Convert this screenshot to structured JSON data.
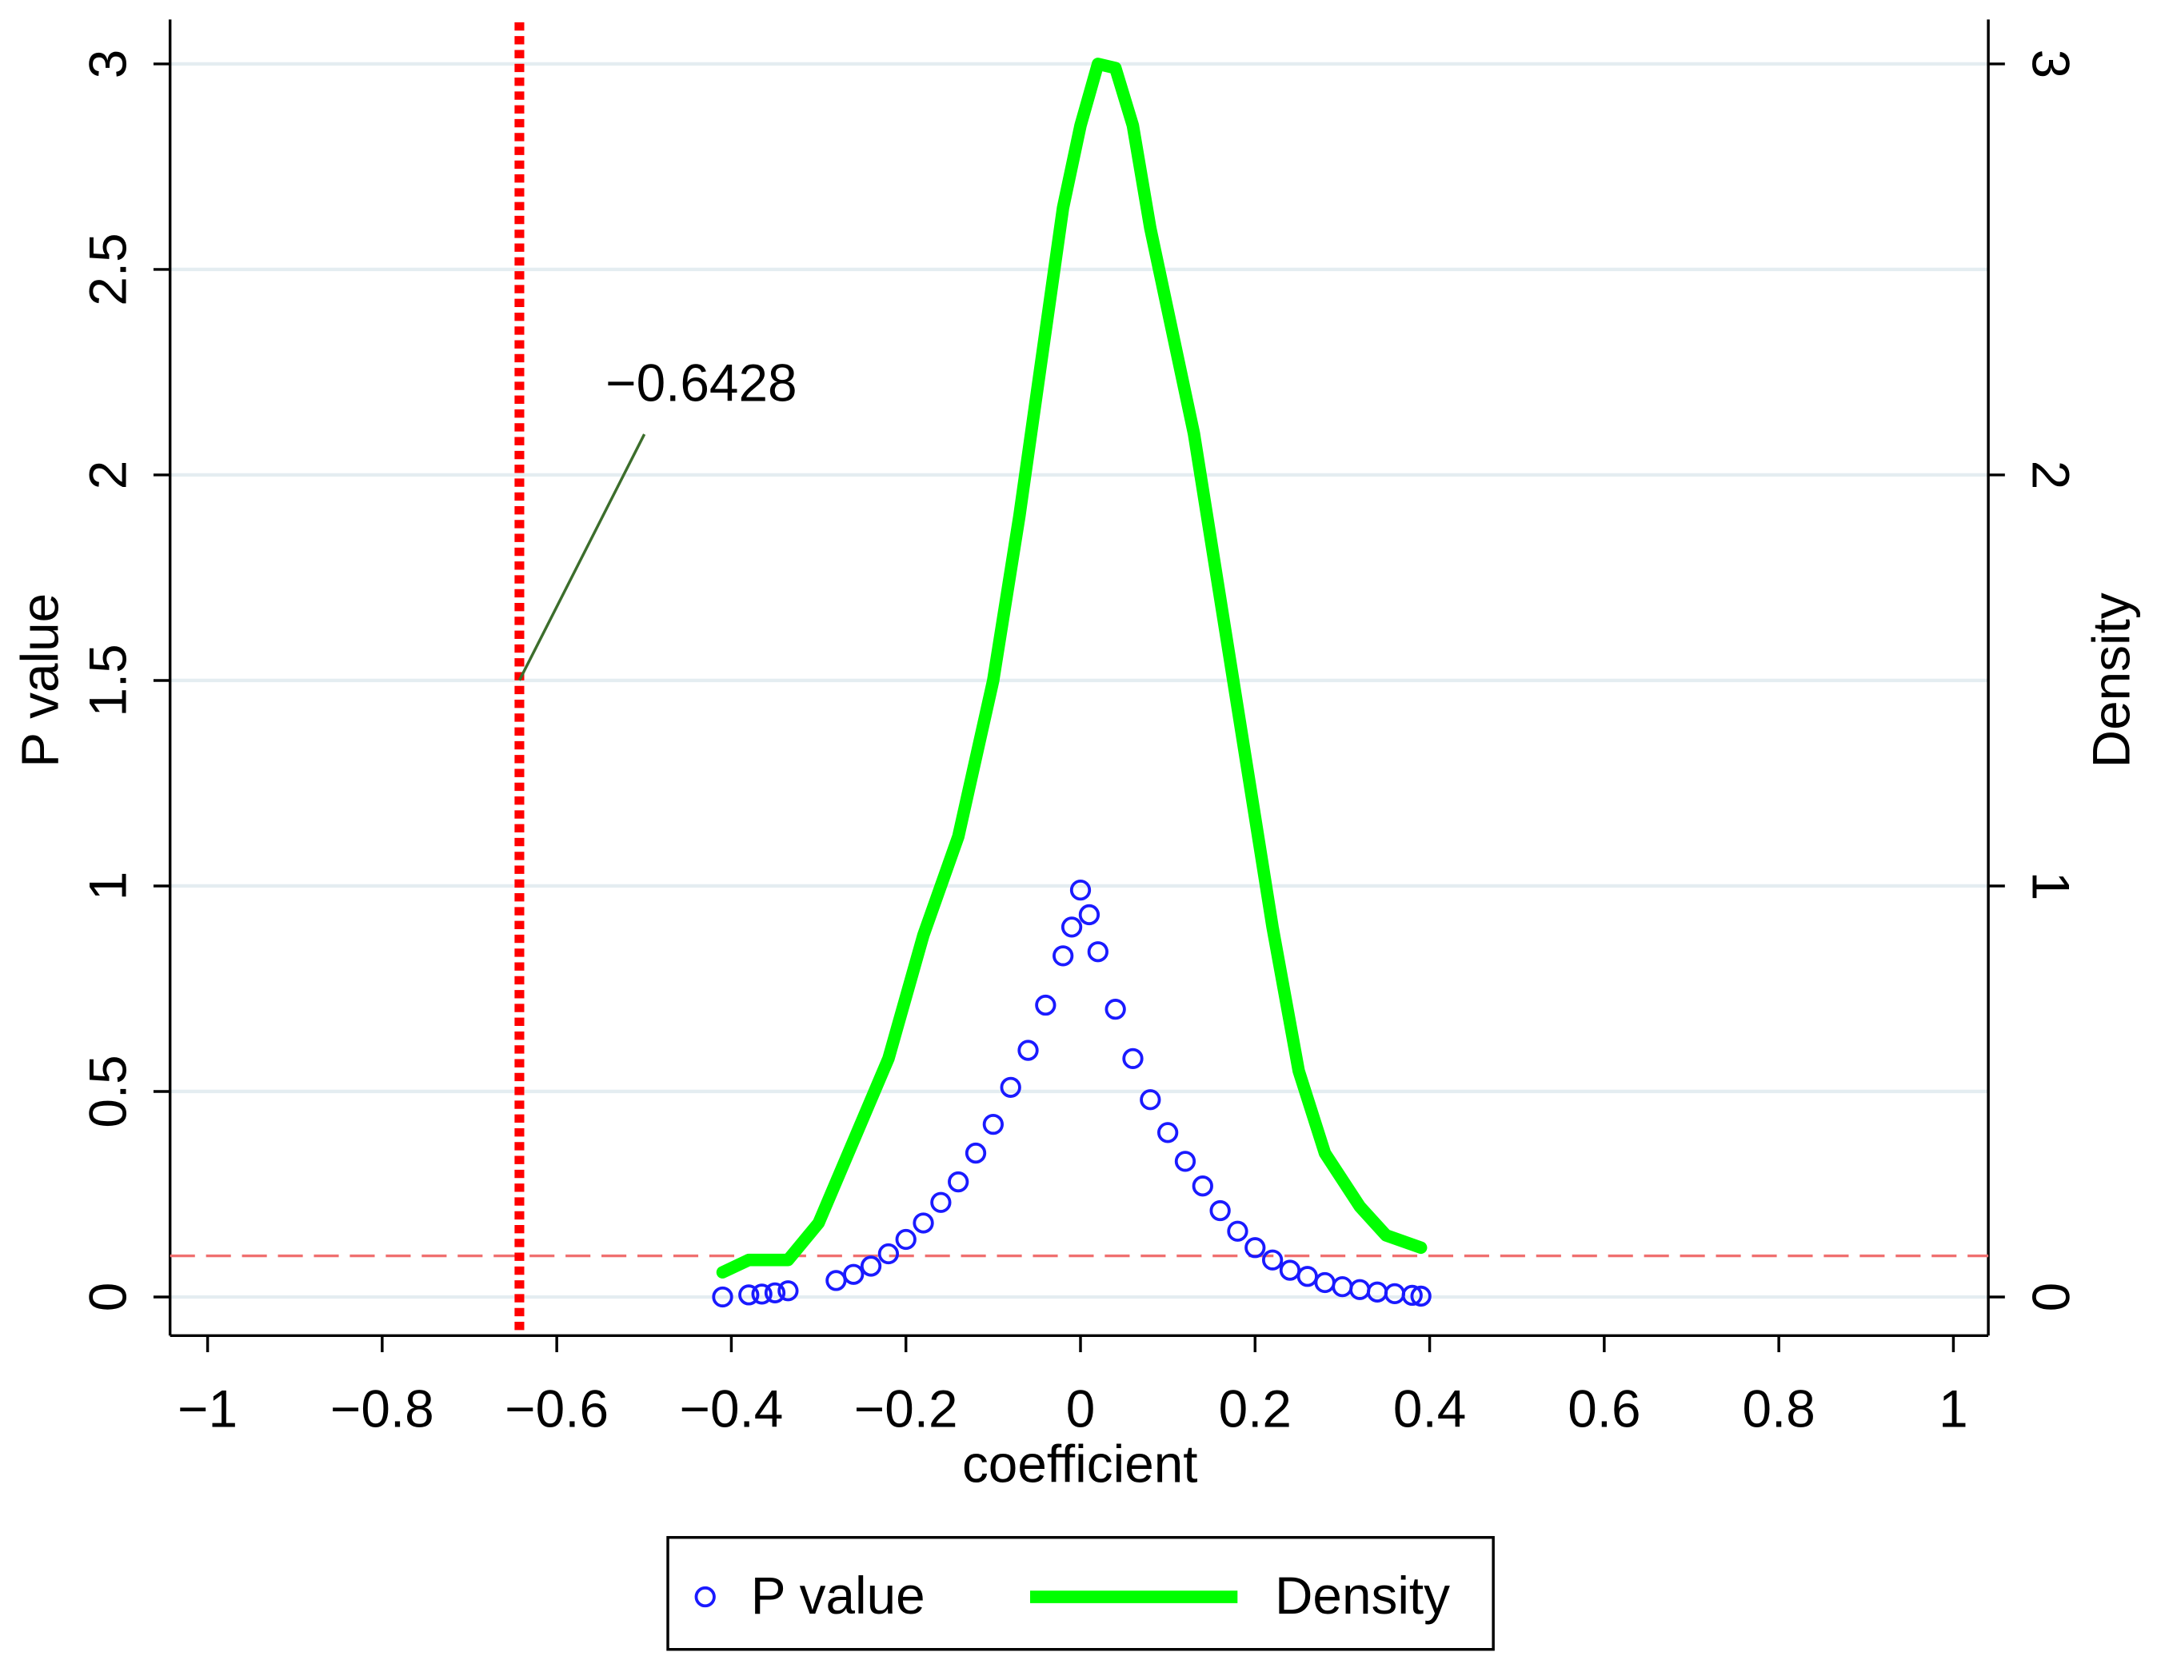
{
  "chart_data": {
    "type": "scatter",
    "xlabel": "coefficient",
    "ylabel": "P value",
    "y2label": "Density",
    "xlim": [
      -1.043,
      1.04
    ],
    "ylim": [
      -0.094,
      3.108
    ],
    "y2lim": [
      -0.094,
      3.108
    ],
    "xticks": [
      {
        "value": -1,
        "label": "−1"
      },
      {
        "value": -0.8,
        "label": "−0.8"
      },
      {
        "value": -0.6,
        "label": "−0.6"
      },
      {
        "value": -0.4,
        "label": "−0.4"
      },
      {
        "value": -0.2,
        "label": "−0.2"
      },
      0,
      0.2,
      0.4,
      0.6,
      0.8,
      1
    ],
    "yticks": [
      0,
      0.5,
      1,
      1.5,
      2,
      2.5,
      3
    ],
    "y2ticks": [
      0,
      1,
      2,
      3
    ],
    "grid": true,
    "legend": "bottom",
    "reference_line": {
      "value": -0.6428,
      "label": "−0.6428",
      "color": "#ff0000"
    },
    "threshold_line": {
      "value": 0.1,
      "color": "#f07070"
    },
    "series": [
      {
        "name": "P value",
        "type": "scatter",
        "color": "#1a1aff",
        "x": [
          -0.41,
          -0.38,
          -0.365,
          -0.35,
          -0.335,
          -0.28,
          -0.26,
          -0.24,
          -0.22,
          -0.2,
          -0.18,
          -0.16,
          -0.14,
          -0.12,
          -0.1,
          -0.08,
          -0.06,
          -0.04,
          -0.02,
          -0.01,
          0,
          0.01,
          0.02,
          0.04,
          0.06,
          0.08,
          0.1,
          0.12,
          0.14,
          0.16,
          0.18,
          0.2,
          0.22,
          0.24,
          0.26,
          0.28,
          0.3,
          0.32,
          0.34,
          0.36,
          0.38,
          0.39
        ],
        "values": [
          0.0,
          0.005,
          0.007,
          0.01,
          0.015,
          0.04,
          0.055,
          0.075,
          0.105,
          0.14,
          0.18,
          0.23,
          0.28,
          0.35,
          0.42,
          0.51,
          0.6,
          0.71,
          0.83,
          0.9,
          0.99,
          0.93,
          0.84,
          0.7,
          0.58,
          0.48,
          0.4,
          0.33,
          0.27,
          0.21,
          0.16,
          0.12,
          0.09,
          0.065,
          0.05,
          0.035,
          0.025,
          0.018,
          0.012,
          0.008,
          0.004,
          0.002
        ]
      },
      {
        "name": "Density",
        "type": "line",
        "axis": "y2",
        "color": "#00ff00",
        "x": [
          -0.41,
          -0.38,
          -0.335,
          -0.3,
          -0.26,
          -0.22,
          -0.18,
          -0.14,
          -0.1,
          -0.07,
          -0.04,
          -0.02,
          0,
          0.02,
          0.04,
          0.06,
          0.08,
          0.1,
          0.13,
          0.16,
          0.19,
          0.22,
          0.25,
          0.28,
          0.32,
          0.35,
          0.39
        ],
        "values": [
          0.06,
          0.09,
          0.09,
          0.18,
          0.38,
          0.58,
          0.88,
          1.12,
          1.5,
          1.9,
          2.35,
          2.65,
          2.85,
          3.0,
          2.99,
          2.85,
          2.6,
          2.4,
          2.1,
          1.7,
          1.3,
          0.9,
          0.55,
          0.35,
          0.22,
          0.15,
          0.12
        ]
      }
    ]
  }
}
